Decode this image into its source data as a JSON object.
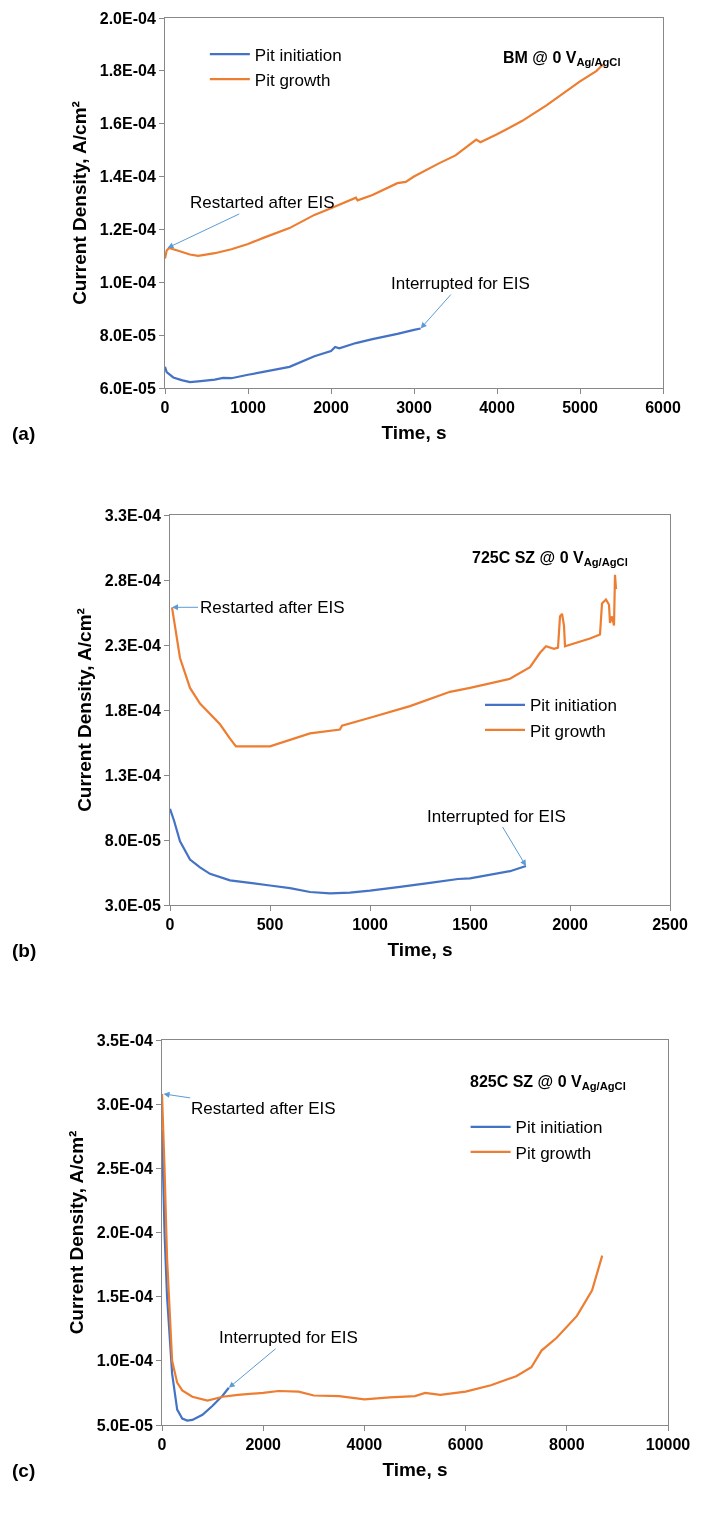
{
  "chart_data": [
    {
      "type": "line",
      "title": "BM @ 0 V$_{Ag/AgCl}$",
      "xlabel": "Time, s",
      "ylabel": "Current Density, A/cm²",
      "legend": "top left",
      "grid": false,
      "xlim": [
        0,
        6000
      ],
      "xticks": [
        0,
        1000,
        2000,
        3000,
        4000,
        5000,
        6000
      ],
      "ylim": [
        6e-05,
        0.0002
      ],
      "yticks": [
        {
          "value": 6e-05,
          "label": "6.0E-05"
        },
        {
          "value": 8e-05,
          "label": "8.0E-05"
        },
        {
          "value": 0.0001,
          "label": "1.0E-04"
        },
        {
          "value": 0.00012,
          "label": "1.2E-04"
        },
        {
          "value": 0.00014,
          "label": "1.4E-04"
        },
        {
          "value": 0.00016,
          "label": "1.6E-04"
        },
        {
          "value": 0.00018,
          "label": "1.8E-04"
        },
        {
          "value": 0.0002,
          "label": "2.0E-04"
        }
      ],
      "series": [
        {
          "name": "Pit initiation",
          "color": "#4472c4",
          "x": [
            0,
            20,
            100,
            200,
            300,
            400,
            600,
            700,
            800,
            1000,
            1200,
            1500,
            1800,
            2000,
            2050,
            2100,
            2300,
            2500,
            2800,
            3000,
            3080
          ],
          "values": [
            6.8e-05,
            6.6e-05,
            6.4e-05,
            6.3e-05,
            6.22e-05,
            6.25e-05,
            6.32e-05,
            6.38e-05,
            6.37e-05,
            6.5e-05,
            6.62e-05,
            6.8e-05,
            7.2e-05,
            7.4e-05,
            7.55e-05,
            7.5e-05,
            7.7e-05,
            7.85e-05,
            8.05e-05,
            8.2e-05,
            8.25e-05
          ]
        },
        {
          "name": "Pit growth",
          "color": "#ed7d31",
          "x": [
            0,
            20,
            50,
            150,
            300,
            400,
            600,
            800,
            1000,
            1200,
            1500,
            1800,
            2000,
            2300,
            2320,
            2500,
            2800,
            2900,
            3000,
            3300,
            3500,
            3750,
            3800,
            4000,
            4300,
            4600,
            5000,
            5200,
            5280
          ],
          "values": [
            0.000109,
            0.000112,
            0.000113,
            0.000112,
            0.0001105,
            0.00011,
            0.000111,
            0.0001125,
            0.0001145,
            0.000117,
            0.0001205,
            0.0001255,
            0.000128,
            0.000132,
            0.000131,
            0.000133,
            0.0001375,
            0.000138,
            0.00014,
            0.000145,
            0.000148,
            0.000154,
            0.000153,
            0.000156,
            0.000161,
            0.000167,
            0.000176,
            0.00018,
            0.0001825
          ]
        }
      ],
      "annotations": [
        {
          "text": "Restarted after EIS",
          "x": 30,
          "y": 0.000113
        },
        {
          "text": "Interrupted for EIS",
          "x": 3080,
          "y": 8.25e-05
        },
        "(a)"
      ]
    },
    {
      "type": "line",
      "title": "725C SZ @ 0 V$_{Ag/AgCl}$",
      "xlabel": "Time, s",
      "ylabel": "Current Density, A/cm²",
      "legend": "right",
      "grid": false,
      "xlim": [
        0,
        2500
      ],
      "xticks": [
        0,
        500,
        1000,
        1500,
        2000,
        2500
      ],
      "ylim": [
        3e-05,
        0.00033
      ],
      "yticks": [
        {
          "value": 3e-05,
          "label": "3.0E-05"
        },
        {
          "value": 8e-05,
          "label": "8.0E-05"
        },
        {
          "value": 0.00013,
          "label": "1.3E-04"
        },
        {
          "value": 0.00018,
          "label": "1.8E-04"
        },
        {
          "value": 0.00023,
          "label": "2.3E-04"
        },
        {
          "value": 0.00028,
          "label": "2.8E-04"
        },
        {
          "value": 0.00033,
          "label": "3.3E-04"
        }
      ],
      "series": [
        {
          "name": "Pit initiation",
          "color": "#4472c4",
          "x": [
            0,
            20,
            50,
            100,
            150,
            200,
            300,
            400,
            500,
            600,
            700,
            800,
            900,
            1000,
            1150,
            1300,
            1440,
            1500,
            1700,
            1780
          ],
          "values": [
            0.000104,
            9.5e-05,
            7.9e-05,
            6.5e-05,
            5.9e-05,
            5.4e-05,
            4.9e-05,
            4.7e-05,
            4.5e-05,
            4.3e-05,
            4e-05,
            3.9e-05,
            3.95e-05,
            4.1e-05,
            4.4e-05,
            4.7e-05,
            5e-05,
            5.05e-05,
            5.6e-05,
            6e-05
          ]
        },
        {
          "name": "Pit growth",
          "color": "#ed7d31",
          "x": [
            10,
            50,
            100,
            150,
            250,
            300,
            330,
            500,
            700,
            850,
            860,
            1000,
            1200,
            1400,
            1500,
            1700,
            1800,
            1850,
            1880,
            1920,
            1940,
            1950,
            1960,
            1970,
            1975,
            2100,
            2150,
            2160,
            2180,
            2195,
            2200,
            2210,
            2220,
            2225,
            2230
          ],
          "values": [
            0.000259,
            0.00022,
            0.000197,
            0.000185,
            0.000169,
            0.000158,
            0.000152,
            0.000152,
            0.000162,
            0.000165,
            0.000168,
            0.000174,
            0.000183,
            0.000194,
            0.000197,
            0.000204,
            0.000213,
            0.000224,
            0.000229,
            0.000227,
            0.000228,
            0.000252,
            0.000254,
            0.000245,
            0.000229,
            0.000235,
            0.000238,
            0.000262,
            0.000265,
            0.000261,
            0.000247,
            0.000252,
            0.000245,
            0.000284,
            0.000273
          ]
        }
      ],
      "annotations": [
        {
          "text": "Restarted after EIS",
          "x": 10,
          "y": 0.000259
        },
        {
          "text": "Interrupted for EIS",
          "x": 1780,
          "y": 6e-05
        },
        "(b)"
      ]
    },
    {
      "type": "line",
      "title": "825C SZ @ 0 V$_{Ag/AgCl}$",
      "xlabel": "Time, s",
      "ylabel": "Current Density, A/cm²",
      "legend": "top right",
      "grid": false,
      "xlim": [
        0,
        10000
      ],
      "xticks": [
        0,
        2000,
        4000,
        6000,
        8000,
        10000
      ],
      "ylim": [
        5e-05,
        0.00035
      ],
      "yticks": [
        {
          "value": 5e-05,
          "label": "5.0E-05"
        },
        {
          "value": 0.0001,
          "label": "1.0E-04"
        },
        {
          "value": 0.00015,
          "label": "1.5E-04"
        },
        {
          "value": 0.0002,
          "label": "2.0E-04"
        },
        {
          "value": 0.00025,
          "label": "2.5E-04"
        },
        {
          "value": 0.0003,
          "label": "3.0E-04"
        },
        {
          "value": 0.00035,
          "label": "3.5E-04"
        }
      ],
      "series": [
        {
          "name": "Pit initiation",
          "color": "#4472c4",
          "x": [
            0,
            50,
            100,
            200,
            300,
            400,
            500,
            600,
            800,
            1000,
            1200,
            1320
          ],
          "values": [
            0.00028,
            0.0002,
            0.00015,
            9e-05,
            6.2e-05,
            5.5e-05,
            5.35e-05,
            5.4e-05,
            5.8e-05,
            6.5e-05,
            7.3e-05,
            7.9e-05
          ]
        },
        {
          "name": "Pit growth",
          "color": "#ed7d31",
          "x": [
            0,
            50,
            100,
            200,
            300,
            400,
            600,
            900,
            1200,
            1500,
            2000,
            2300,
            2700,
            3000,
            3500,
            4000,
            4500,
            5000,
            5200,
            5500,
            6000,
            6500,
            7000,
            7300,
            7500,
            7800,
            8200,
            8500,
            8700
          ],
          "values": [
            0.000308,
            0.00025,
            0.00018,
            0.0001,
            8.3e-05,
            7.7e-05,
            7.2e-05,
            6.9e-05,
            7.2e-05,
            7.35e-05,
            7.5e-05,
            7.65e-05,
            7.6e-05,
            7.3e-05,
            7.25e-05,
            7e-05,
            7.15e-05,
            7.25e-05,
            7.5e-05,
            7.35e-05,
            7.6e-05,
            8.1e-05,
            8.8e-05,
            9.5e-05,
            0.000108,
            0.000118,
            0.000135,
            0.000155,
            0.000182
          ]
        }
      ],
      "annotations": [
        {
          "text": "Restarted after EIS",
          "x": 30,
          "y": 0.000308
        },
        {
          "text": "Interrupted for EIS",
          "x": 1320,
          "y": 7.9e-05
        },
        "(c)"
      ]
    }
  ]
}
